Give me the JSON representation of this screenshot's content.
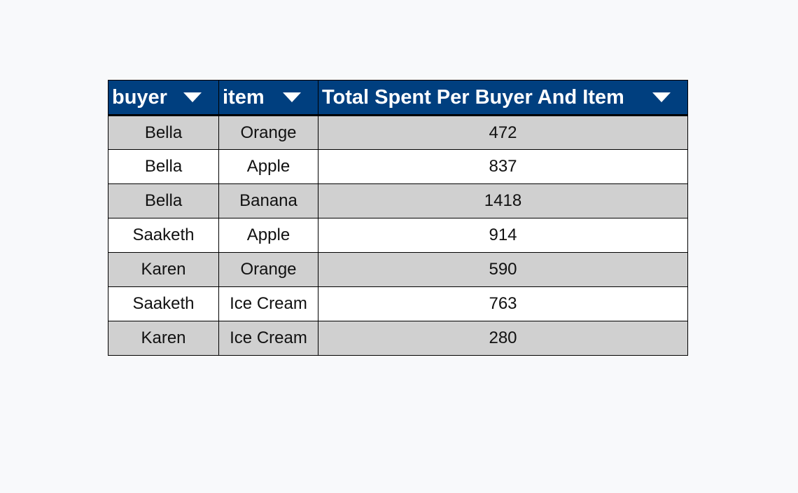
{
  "table": {
    "columns": [
      {
        "label": "buyer",
        "icon": "caret-down-icon"
      },
      {
        "label": "item",
        "icon": "caret-down-icon"
      },
      {
        "label": "Total Spent Per Buyer And Item",
        "icon": "caret-down-icon"
      }
    ],
    "rows": [
      {
        "buyer": "Bella",
        "item": "Orange",
        "total": "472"
      },
      {
        "buyer": "Bella",
        "item": "Apple",
        "total": "837"
      },
      {
        "buyer": "Bella",
        "item": "Banana",
        "total": "1418"
      },
      {
        "buyer": "Saaketh",
        "item": "Apple",
        "total": "914"
      },
      {
        "buyer": "Karen",
        "item": "Orange",
        "total": "590"
      },
      {
        "buyer": "Saaketh",
        "item": "Ice Cream",
        "total": "763"
      },
      {
        "buyer": "Karen",
        "item": "Ice Cream",
        "total": "280"
      }
    ],
    "colors": {
      "header_bg": "#003f7f",
      "header_text": "#ffffff",
      "row_shaded": "#d0d0d0",
      "row_plain": "#ffffff"
    }
  }
}
